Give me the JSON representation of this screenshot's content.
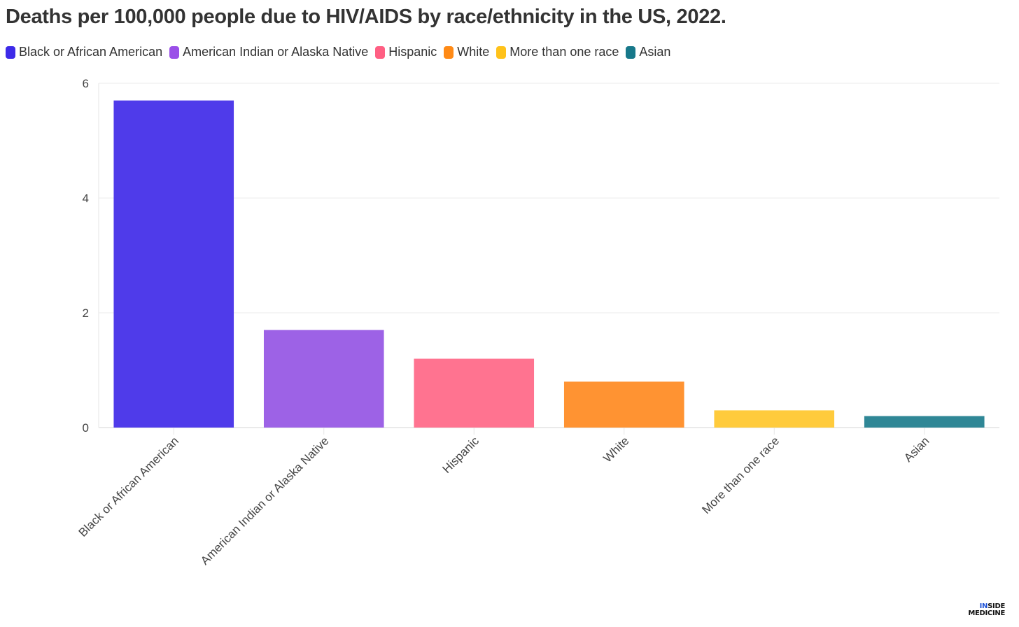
{
  "title": "Deaths per 100,000 people due to HIV/AIDS by race/ethnicity in the US, 2022.",
  "logo": {
    "line1_accent": "IN",
    "line1_rest": "SIDE",
    "line2": "MEDICINE"
  },
  "chart_data": {
    "type": "bar",
    "title": "Deaths per 100,000 people due to HIV/AIDS by race/ethnicity in the US, 2022.",
    "xlabel": "",
    "ylabel": "",
    "categories": [
      "Black or African American",
      "American Indian or Alaska Native",
      "Hispanic",
      "White",
      "More than one race",
      "Asian"
    ],
    "values": [
      5.7,
      1.7,
      1.2,
      0.8,
      0.3,
      0.2
    ],
    "colors": [
      "#4f3bea",
      "#9d62e6",
      "#ff7390",
      "#ff9332",
      "#ffcb3c",
      "#2f8796"
    ],
    "legend_colors": [
      "#3d2ae8",
      "#9a4fe8",
      "#ff5f83",
      "#ff8a16",
      "#ffc21a",
      "#17788a"
    ],
    "ylim": [
      0,
      6
    ],
    "yticks": [
      0,
      2,
      4,
      6
    ],
    "grid": true,
    "legend_position": "top-left"
  }
}
